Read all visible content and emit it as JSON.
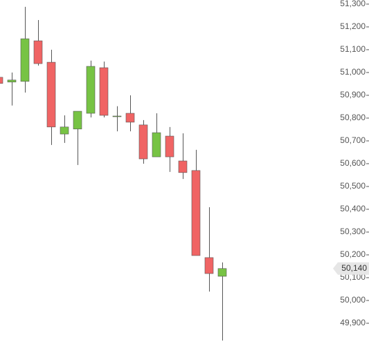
{
  "chart_data": {
    "type": "candlestick",
    "open": [
      50979,
      50958,
      50961,
      51139,
      51045,
      50730,
      50752,
      50821,
      51021,
      50809,
      50821,
      50770,
      50630,
      50721,
      50612,
      50570,
      50188,
      50106
    ],
    "high": [
      50979,
      51000,
      51288,
      51230,
      51100,
      50812,
      50830,
      51052,
      51048,
      50852,
      50900,
      50791,
      50821,
      50761,
      50733,
      50661,
      50409,
      50167
    ],
    "low": [
      50952,
      50855,
      50912,
      51030,
      50682,
      50691,
      50594,
      50803,
      50803,
      50742,
      50742,
      50600,
      50630,
      50564,
      50533,
      50197,
      50039,
      49824
    ],
    "close": [
      50952,
      50967,
      51148,
      51039,
      50761,
      50761,
      50830,
      51027,
      50812,
      50809,
      50782,
      50621,
      50736,
      50630,
      50561,
      50197,
      50118,
      50140
    ],
    "up_color": "#77c344",
    "down_color": "#f06464",
    "ylim": [
      49809,
      51318
    ],
    "yticks": [
      {
        "value": 51300,
        "label": "51,300"
      },
      {
        "value": 51200,
        "label": "51,200"
      },
      {
        "value": 51100,
        "label": "51,100"
      },
      {
        "value": 51000,
        "label": "51,000"
      },
      {
        "value": 50900,
        "label": "50,900"
      },
      {
        "value": 50800,
        "label": "50,800"
      },
      {
        "value": 50700,
        "label": "50,700"
      },
      {
        "value": 50600,
        "label": "50,600"
      },
      {
        "value": 50500,
        "label": "50,500"
      },
      {
        "value": 50400,
        "label": "50,400"
      },
      {
        "value": 50300,
        "label": "50,300"
      },
      {
        "value": 50200,
        "label": "50,200"
      },
      {
        "value": 50100,
        "label": "50,100"
      },
      {
        "value": 50000,
        "label": "50,000"
      },
      {
        "value": 49900,
        "label": "49,900"
      }
    ],
    "last_price": {
      "value": 50140,
      "label": "50,140"
    }
  }
}
